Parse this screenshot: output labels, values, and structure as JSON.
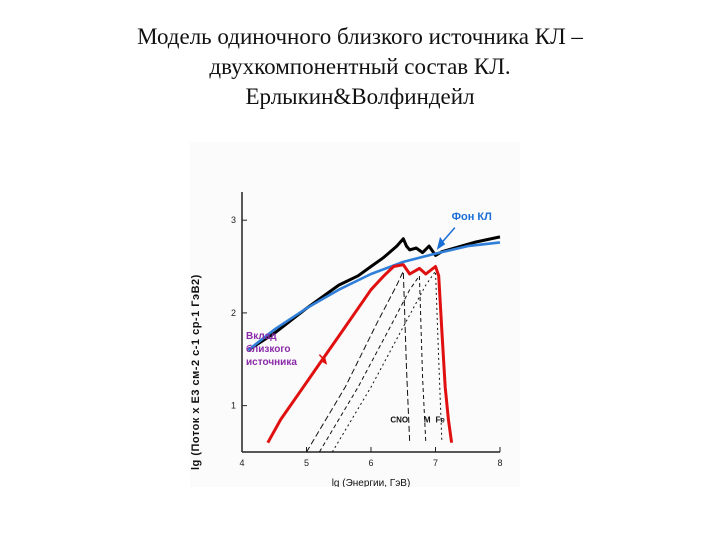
{
  "title_lines": [
    "Модель одиночного близкого источника КЛ –",
    "двухкомпонентный состав КЛ.",
    "Ерлыкин&Волфиндейл"
  ],
  "chart_data": {
    "type": "line",
    "xlabel": "lg (Энергии, ГэВ)",
    "ylabel": "lg (Поток x E3 см-2 с-1 ср-1 ГэВ2)",
    "xlim": [
      4,
      8
    ],
    "ylim": [
      0.5,
      3.25
    ],
    "x_ticks": [
      "4",
      "5",
      "6",
      "7",
      "8"
    ],
    "y_ticks": [
      "1",
      "2",
      "3"
    ],
    "grid": false,
    "annotations": [
      {
        "text": "Фон КЛ",
        "color": "#1a6fd6"
      },
      {
        "text": "Вклад близкого источника",
        "color": "#8a2aa8"
      },
      {
        "text": "CNO",
        "color": "#111111"
      },
      {
        "text": "M",
        "color": "#111111"
      },
      {
        "text": "Fe",
        "color": "#111111"
      }
    ],
    "series": [
      {
        "name": "total",
        "color": "#000000",
        "x": [
          4.1,
          4.5,
          5.0,
          5.5,
          5.8,
          6.0,
          6.2,
          6.4,
          6.5,
          6.55,
          6.6,
          6.7,
          6.8,
          6.9,
          7.0,
          7.1,
          7.3,
          7.6,
          8.0
        ],
        "y": [
          1.6,
          1.78,
          2.05,
          2.3,
          2.4,
          2.5,
          2.6,
          2.72,
          2.8,
          2.72,
          2.68,
          2.7,
          2.65,
          2.72,
          2.62,
          2.66,
          2.7,
          2.76,
          2.82
        ]
      },
      {
        "name": "background",
        "color": "#2f7fd8",
        "x": [
          4.1,
          4.5,
          5.0,
          5.5,
          6.0,
          6.5,
          7.0,
          7.5,
          8.0
        ],
        "y": [
          1.6,
          1.82,
          2.05,
          2.25,
          2.42,
          2.55,
          2.64,
          2.72,
          2.76
        ]
      },
      {
        "name": "source",
        "color": "#e01010",
        "x": [
          4.4,
          4.6,
          4.9,
          5.2,
          5.5,
          5.8,
          6.0,
          6.2,
          6.35,
          6.5,
          6.6,
          6.75,
          6.85,
          7.0,
          7.05,
          7.1,
          7.15,
          7.2,
          7.25
        ],
        "y": [
          0.6,
          0.85,
          1.15,
          1.45,
          1.75,
          2.05,
          2.25,
          2.4,
          2.5,
          2.52,
          2.42,
          2.48,
          2.42,
          2.5,
          2.4,
          1.8,
          1.2,
          0.85,
          0.6
        ]
      },
      {
        "name": "CNO",
        "color": "#111111",
        "dash": "6,3",
        "x": [
          5.0,
          5.6,
          6.1,
          6.4,
          6.5,
          6.55,
          6.6
        ],
        "y": [
          0.5,
          1.2,
          1.9,
          2.3,
          2.45,
          1.4,
          0.6
        ]
      },
      {
        "name": "M",
        "color": "#111111",
        "dash": "4,3",
        "x": [
          5.2,
          5.8,
          6.3,
          6.6,
          6.75,
          6.8,
          6.85
        ],
        "y": [
          0.5,
          1.2,
          1.85,
          2.25,
          2.4,
          1.3,
          0.6
        ]
      },
      {
        "name": "Fe",
        "color": "#111111",
        "dash": "2,3",
        "x": [
          5.4,
          6.0,
          6.5,
          6.85,
          7.0,
          7.05,
          7.1
        ],
        "y": [
          0.5,
          1.2,
          1.85,
          2.3,
          2.45,
          1.5,
          0.6
        ]
      }
    ]
  }
}
